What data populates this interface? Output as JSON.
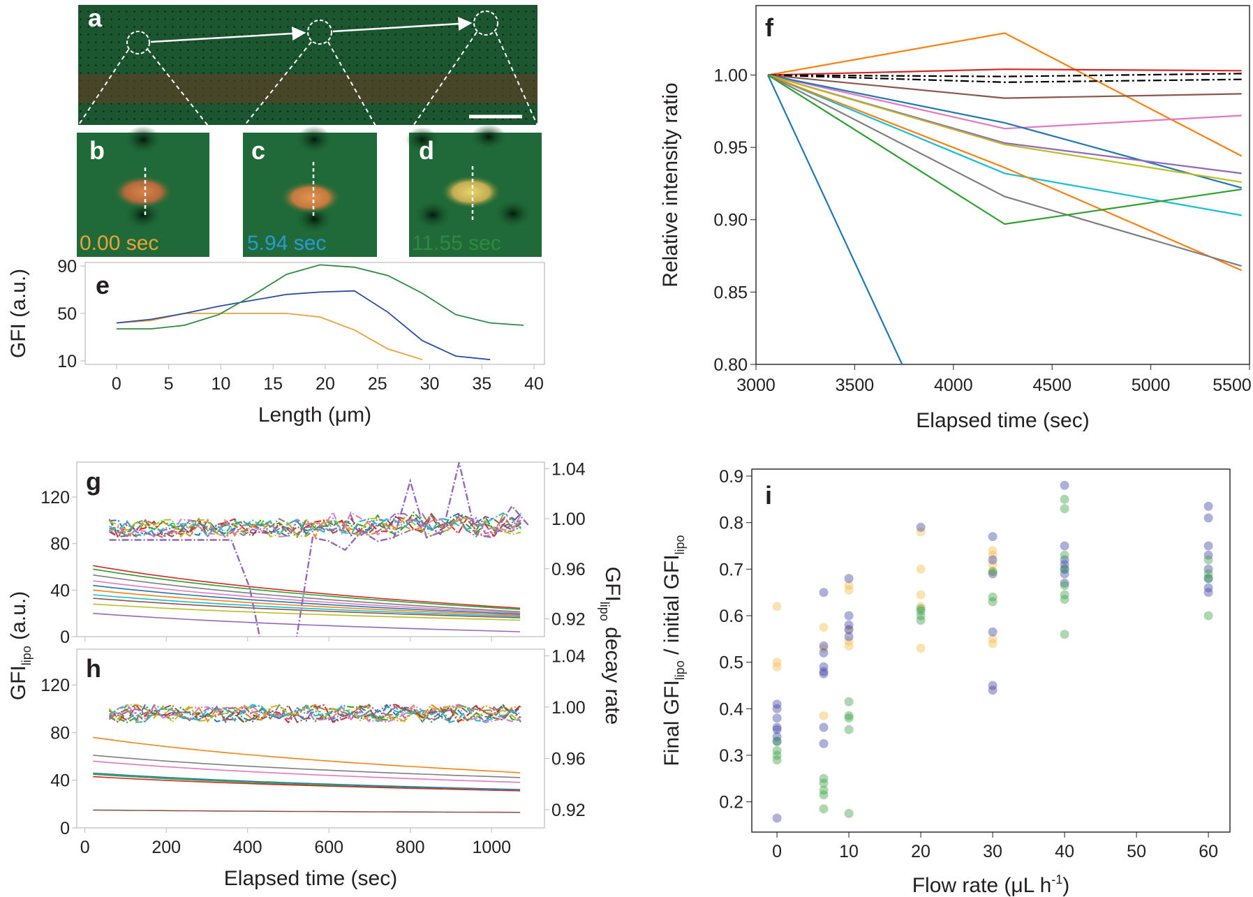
{
  "colors": {
    "orange": "#e8a33a",
    "blue": "#2a9ad6",
    "green": "#2d8a3e",
    "scatter_orange": "#f5b94a",
    "scatter_blue": "#3b45a8",
    "scatter_green": "#39a044"
  },
  "panels": {
    "a": {
      "letter": "a"
    },
    "b": {
      "letter": "b",
      "time_label": "0.00 sec"
    },
    "c": {
      "letter": "c",
      "time_label": "5.94 sec"
    },
    "d": {
      "letter": "d",
      "time_label": "11.55 sec"
    }
  },
  "chart_data": [
    {
      "id": "e",
      "panel_letter": "e",
      "type": "line",
      "xlabel": "Length (μm)",
      "ylabel": "GFI (a.u.)",
      "xlim": [
        -3,
        41
      ],
      "ylim": [
        7,
        93
      ],
      "xticks": [
        0,
        5,
        10,
        15,
        20,
        25,
        30,
        35,
        40
      ],
      "yticks": [
        10,
        50,
        90
      ],
      "series": [
        {
          "name": "0.00 sec",
          "color": "#e8a33a",
          "x": [
            0,
            3.3,
            6.5,
            9.8,
            13,
            16.3,
            19.5,
            22.8,
            26,
            29.3
          ],
          "y": [
            42,
            44,
            50,
            50,
            50,
            50,
            47,
            36,
            20,
            11
          ]
        },
        {
          "name": "5.94 sec",
          "color": "#2b4ca3",
          "x": [
            0,
            3.3,
            6.5,
            9.8,
            13,
            16.3,
            19.5,
            22.8,
            26,
            29.3,
            32.5,
            35.8
          ],
          "y": [
            42,
            45,
            50,
            56,
            61,
            66,
            68,
            69,
            51,
            27,
            14,
            11
          ]
        },
        {
          "name": "11.55 sec",
          "color": "#2d8a3e",
          "x": [
            0,
            3.3,
            6.5,
            9.8,
            13,
            16.3,
            19.5,
            22.8,
            26,
            29.3,
            32.5,
            35.8,
            39
          ],
          "y": [
            37,
            37,
            40,
            49,
            65,
            83,
            91,
            89,
            82,
            67,
            49,
            42,
            40
          ]
        }
      ]
    },
    {
      "id": "f",
      "panel_letter": "f",
      "type": "line",
      "xlabel": "Elapsed time (sec)",
      "ylabel": "Relative intensity ratio",
      "xlim": [
        3000,
        5500
      ],
      "ylim": [
        0.8,
        1.048
      ],
      "xticks": [
        3000,
        3500,
        4000,
        4500,
        5000,
        5500
      ],
      "yticks": [
        0.8,
        0.85,
        0.9,
        0.95,
        1.0
      ],
      "ytick_labels": [
        "0.80",
        "0.85",
        "0.90",
        "0.95",
        "1.00"
      ],
      "series": [
        {
          "color": "#1f77b4",
          "x": [
            3060,
            3740
          ],
          "y": [
            1.0,
            0.8
          ]
        },
        {
          "color": "#ff7f0e",
          "x": [
            3060,
            4260,
            5460
          ],
          "y": [
            1.0,
            1.029,
            0.944
          ]
        },
        {
          "color": "#d62728",
          "x": [
            3060,
            4260,
            5460
          ],
          "y": [
            1.0,
            1.004,
            1.003
          ]
        },
        {
          "color": "#000000",
          "dash": "dashdot",
          "x": [
            3060,
            4260,
            5460
          ],
          "y": [
            1.0,
            0.999,
            1.001
          ]
        },
        {
          "color": "#000000",
          "dash": "dashdot",
          "x": [
            3060,
            4260,
            5460
          ],
          "y": [
            1.0,
            0.995,
            0.997
          ]
        },
        {
          "color": "#8c564b",
          "x": [
            3060,
            4260,
            5460
          ],
          "y": [
            1.0,
            0.984,
            0.987
          ]
        },
        {
          "color": "#e377c2",
          "x": [
            3060,
            4260,
            5460
          ],
          "y": [
            1.0,
            0.963,
            0.972
          ]
        },
        {
          "color": "#1f77b4",
          "x": [
            3060,
            4260,
            5460
          ],
          "y": [
            1.0,
            0.967,
            0.922
          ]
        },
        {
          "color": "#9467bd",
          "x": [
            3060,
            4260,
            5460
          ],
          "y": [
            1.0,
            0.953,
            0.932
          ]
        },
        {
          "color": "#bcbd22",
          "x": [
            3060,
            4260,
            5460
          ],
          "y": [
            1.0,
            0.952,
            0.926
          ]
        },
        {
          "color": "#17becf",
          "x": [
            3060,
            4260,
            5460
          ],
          "y": [
            1.0,
            0.932,
            0.903
          ]
        },
        {
          "color": "#ff7f0e",
          "x": [
            3060,
            4260,
            5460
          ],
          "y": [
            1.0,
            0.936,
            0.865
          ]
        },
        {
          "color": "#7f7f7f",
          "x": [
            3060,
            4260,
            5460
          ],
          "y": [
            1.0,
            0.916,
            0.868
          ]
        },
        {
          "color": "#2ca02c",
          "x": [
            3060,
            4260,
            5460
          ],
          "y": [
            1.0,
            0.897,
            0.921
          ]
        }
      ]
    },
    {
      "id": "g",
      "panel_letter": "g",
      "type": "line",
      "shared_xlabel": "Elapsed time (sec)",
      "shared_ylabel_left": "GFI",
      "shared_ylabel_left_sub": "lipo",
      "shared_ylabel_left_unit": " (a.u.)",
      "shared_ylabel_right": "GFI",
      "shared_ylabel_right_sub": "lipo",
      "shared_ylabel_right_tail": " decay rate",
      "xlim": [
        -20,
        1130
      ],
      "ylim_left": [
        0,
        150
      ],
      "ylim_right": [
        0.9058,
        1.0452
      ],
      "yticks_left": [
        0,
        40,
        80,
        120
      ],
      "yticks_right": [
        0.92,
        0.96,
        1.0,
        1.04
      ],
      "ytick_labels_right": [
        "0.92",
        "0.96",
        "1.00",
        "1.04"
      ],
      "intensity_start_end": [
        {
          "color": "#d62728",
          "start": 61,
          "end": 24
        },
        {
          "color": "#2ca02c",
          "start": 58,
          "end": 23
        },
        {
          "color": "#7f7f7f",
          "start": 53,
          "end": 21
        },
        {
          "color": "#e377c2",
          "start": 48,
          "end": 20
        },
        {
          "color": "#1f77b4",
          "start": 44,
          "end": 19
        },
        {
          "color": "#ff7f0e",
          "start": 40,
          "end": 18
        },
        {
          "color": "#17becf",
          "start": 36,
          "end": 17
        },
        {
          "color": "#8c564b",
          "start": 33,
          "end": 16
        },
        {
          "color": "#bcbd22",
          "start": 28,
          "end": 14
        },
        {
          "color": "#9467bd",
          "start": 20,
          "end": 4
        }
      ],
      "decay_rate_band": [
        0.985,
        1.0
      ],
      "decay_rate_outlier": {
        "color": "#9467bd",
        "x": [
          0,
          360,
          405,
          430,
          480,
          520,
          560,
          600,
          640,
          680,
          720,
          760,
          800,
          840,
          880,
          920,
          960,
          1000,
          1050,
          1090
        ],
        "y": [
          0.983,
          0.983,
          0.945,
          0.905,
          0.895,
          0.904,
          0.985,
          0.982,
          0.975,
          0.99,
          0.982,
          0.985,
          1.03,
          0.985,
          0.99,
          1.045,
          0.988,
          0.985,
          1.01,
          0.995
        ]
      }
    },
    {
      "id": "h",
      "panel_letter": "h",
      "type": "line",
      "xlim": [
        -20,
        1130
      ],
      "ylim_left": [
        0,
        150
      ],
      "ylim_right": [
        0.9058,
        1.0452
      ],
      "xticks": [
        0,
        200,
        400,
        600,
        800,
        1000
      ],
      "yticks_left": [
        0,
        40,
        80,
        120
      ],
      "yticks_right": [
        0.92,
        0.96,
        1.0,
        1.04
      ],
      "ytick_labels_right": [
        "0.92",
        "0.96",
        "1.00",
        "1.04"
      ],
      "intensity_start_end": [
        {
          "color": "#ff7f0e",
          "start": 76,
          "end": 46
        },
        {
          "color": "#7f7f7f",
          "start": 61,
          "end": 42
        },
        {
          "color": "#e377c2",
          "start": 56,
          "end": 38
        },
        {
          "color": "#1f77b4",
          "start": 46,
          "end": 32
        },
        {
          "color": "#2ca02c",
          "start": 45,
          "end": 31
        },
        {
          "color": "#d62728",
          "start": 43,
          "end": 31
        },
        {
          "color": "#8c564b",
          "start": 15,
          "end": 13
        }
      ],
      "decay_rate_band": [
        0.988,
        1.002
      ]
    },
    {
      "id": "i",
      "panel_letter": "i",
      "type": "scatter",
      "xlabel": "Flow rate (μL h",
      "xlabel_sup": "-1",
      "xlabel_tail": ")",
      "ylabel_parts": [
        "Final GFI",
        "lipo",
        " / initial GFI",
        "lipo"
      ],
      "xlim": [
        -3.5,
        63
      ],
      "ylim": [
        0.135,
        0.915
      ],
      "xticks": [
        0,
        10,
        20,
        30,
        40,
        50,
        60
      ],
      "yticks": [
        0.2,
        0.3,
        0.4,
        0.5,
        0.6,
        0.7,
        0.8,
        0.9
      ],
      "series": [
        {
          "name": "orange",
          "color": "#f5b94a",
          "points": [
            [
              0,
              0.62
            ],
            [
              0,
              0.5
            ],
            [
              0,
              0.49
            ],
            [
              6.5,
              0.575
            ],
            [
              6.5,
              0.53
            ],
            [
              6.5,
              0.385
            ],
            [
              10,
              0.665
            ],
            [
              10,
              0.655
            ],
            [
              10,
              0.57
            ],
            [
              10,
              0.545
            ],
            [
              10,
              0.535
            ],
            [
              20,
              0.78
            ],
            [
              20,
              0.7
            ],
            [
              20,
              0.645
            ],
            [
              20,
              0.62
            ],
            [
              20,
              0.53
            ],
            [
              30,
              0.74
            ],
            [
              30,
              0.73
            ],
            [
              30,
              0.71
            ],
            [
              30,
              0.695
            ],
            [
              30,
              0.55
            ],
            [
              30,
              0.54
            ]
          ]
        },
        {
          "name": "blue",
          "color": "#3b45a8",
          "points": [
            [
              0,
              0.41
            ],
            [
              0,
              0.4
            ],
            [
              0,
              0.38
            ],
            [
              0,
              0.36
            ],
            [
              0,
              0.355
            ],
            [
              0,
              0.34
            ],
            [
              0,
              0.33
            ],
            [
              0,
              0.165
            ],
            [
              6.5,
              0.65
            ],
            [
              6.5,
              0.535
            ],
            [
              6.5,
              0.52
            ],
            [
              6.5,
              0.49
            ],
            [
              6.5,
              0.48
            ],
            [
              6.5,
              0.475
            ],
            [
              6.5,
              0.36
            ],
            [
              6.5,
              0.325
            ],
            [
              10,
              0.68
            ],
            [
              10,
              0.6
            ],
            [
              10,
              0.58
            ],
            [
              10,
              0.57
            ],
            [
              10,
              0.555
            ],
            [
              20,
              0.79
            ],
            [
              30,
              0.77
            ],
            [
              30,
              0.72
            ],
            [
              30,
              0.69
            ],
            [
              30,
              0.565
            ],
            [
              30,
              0.45
            ],
            [
              30,
              0.44
            ],
            [
              40,
              0.88
            ],
            [
              40,
              0.75
            ],
            [
              40,
              0.72
            ],
            [
              40,
              0.71
            ],
            [
              40,
              0.7
            ],
            [
              40,
              0.69
            ],
            [
              40,
              0.67
            ],
            [
              60,
              0.835
            ],
            [
              60,
              0.81
            ],
            [
              60,
              0.75
            ],
            [
              60,
              0.73
            ],
            [
              60,
              0.7
            ],
            [
              60,
              0.68
            ],
            [
              60,
              0.66
            ],
            [
              60,
              0.65
            ]
          ]
        },
        {
          "name": "green",
          "color": "#39a044",
          "points": [
            [
              0,
              0.33
            ],
            [
              0,
              0.31
            ],
            [
              0,
              0.3
            ],
            [
              0,
              0.29
            ],
            [
              6.5,
              0.25
            ],
            [
              6.5,
              0.24
            ],
            [
              6.5,
              0.225
            ],
            [
              6.5,
              0.215
            ],
            [
              6.5,
              0.185
            ],
            [
              10,
              0.415
            ],
            [
              10,
              0.385
            ],
            [
              10,
              0.38
            ],
            [
              10,
              0.355
            ],
            [
              10,
              0.175
            ],
            [
              20,
              0.615
            ],
            [
              20,
              0.61
            ],
            [
              20,
              0.6
            ],
            [
              20,
              0.59
            ],
            [
              30,
              0.695
            ],
            [
              30,
              0.64
            ],
            [
              30,
              0.63
            ],
            [
              40,
              0.85
            ],
            [
              40,
              0.83
            ],
            [
              40,
              0.73
            ],
            [
              40,
              0.7
            ],
            [
              40,
              0.665
            ],
            [
              40,
              0.645
            ],
            [
              40,
              0.635
            ],
            [
              40,
              0.56
            ],
            [
              60,
              0.72
            ],
            [
              60,
              0.69
            ],
            [
              60,
              0.68
            ],
            [
              60,
              0.6
            ]
          ]
        }
      ]
    }
  ]
}
